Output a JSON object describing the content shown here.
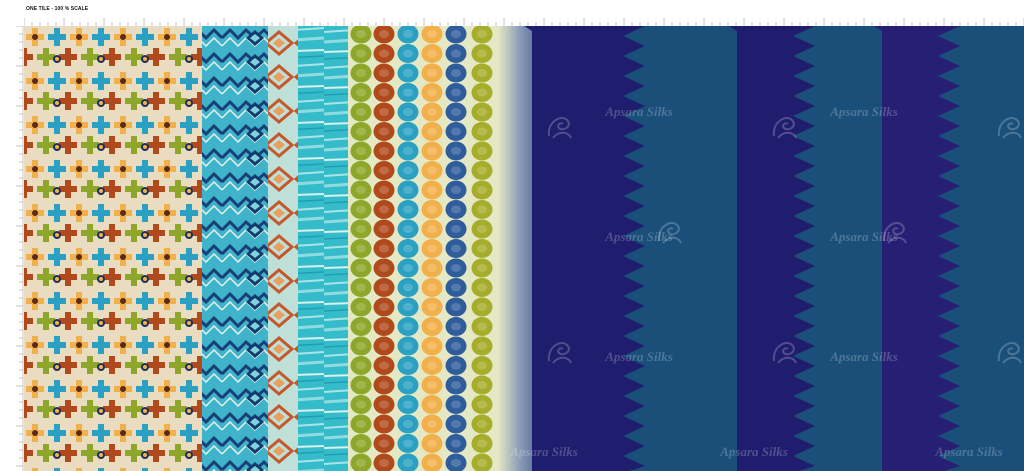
{
  "header": {
    "scale_label": "ONE TILE - 100 % SCALE"
  },
  "watermark": {
    "text": "Apsara Silks",
    "icon": "peacock-logo-icon"
  },
  "colors": {
    "navy": "#1b1e6e",
    "petrol": "#1a4f7a",
    "turquoise": "#2fb7c8",
    "mustard": "#f2b04a",
    "rust": "#b04a1c",
    "olive": "#8ea629",
    "cream": "#e4e8c4",
    "darknavy": "#1d2f5c"
  }
}
